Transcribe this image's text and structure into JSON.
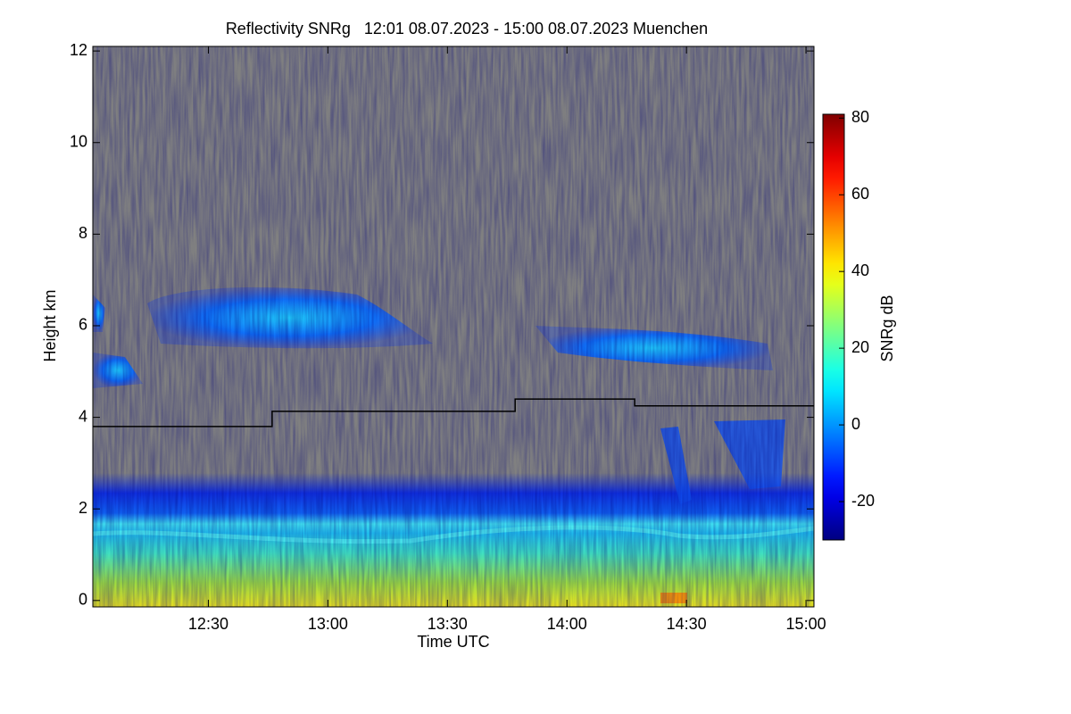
{
  "chart_data": {
    "type": "heatmap",
    "title": "Reflectivity SNRg   12:01 08.07.2023 - 15:00 08.07.2023 Muenchen",
    "xlabel": "Time UTC",
    "ylabel": "Height km",
    "xlim": [
      721,
      902
    ],
    "xticks": [
      {
        "value": 750,
        "label": "12:30"
      },
      {
        "value": 780,
        "label": "13:00"
      },
      {
        "value": 810,
        "label": "13:30"
      },
      {
        "value": 840,
        "label": "14:00"
      },
      {
        "value": 870,
        "label": "14:30"
      },
      {
        "value": 900,
        "label": "15:00"
      }
    ],
    "ylim": [
      -0.14,
      12.1
    ],
    "yticks": [
      0,
      2,
      4,
      6,
      8,
      10,
      12
    ],
    "colorbar": {
      "label": "SNRg dB",
      "lim": [
        -30,
        81
      ],
      "ticks": [
        -20,
        0,
        20,
        40,
        60,
        80
      ],
      "colormap": "jet"
    },
    "series": [
      {
        "color": "#000000",
        "x": [
          721,
          766,
          766,
          827,
          827,
          857,
          857,
          902
        ],
        "values": [
          3.8,
          3.8,
          4.13,
          4.13,
          4.4,
          4.4,
          4.25,
          4.25
        ]
      }
    ]
  }
}
